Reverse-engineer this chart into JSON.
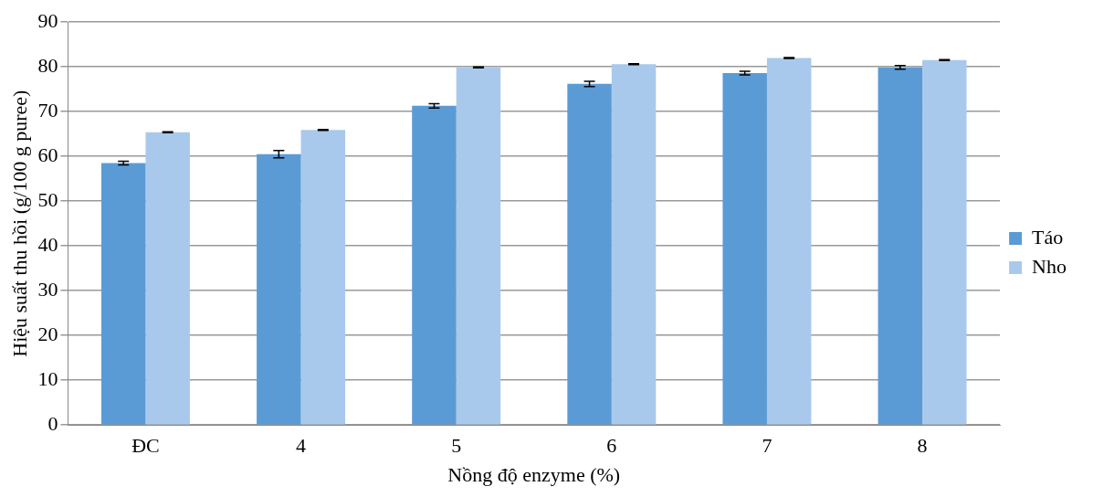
{
  "chart_data": {
    "type": "bar",
    "xlabel": "Nồng độ enzyme (%)",
    "ylabel": "Hiệu suất thu hồi (g/100 g puree)",
    "categories": [
      "ĐC",
      "4",
      "5",
      "6",
      "7",
      "8"
    ],
    "series": [
      {
        "name": "Táo",
        "color": "#5b9bd5",
        "values": [
          58.5,
          60.5,
          71.3,
          76.2,
          78.6,
          79.9
        ],
        "errors": [
          0.4,
          0.8,
          0.5,
          0.6,
          0.4,
          0.4
        ]
      },
      {
        "name": "Nho",
        "color": "#a9c9ec",
        "values": [
          65.4,
          65.9,
          79.9,
          80.6,
          82.0,
          81.5
        ],
        "errors": [
          0.1,
          0.1,
          0.1,
          0.1,
          0.1,
          0.1
        ]
      }
    ],
    "ylim": [
      0,
      90
    ],
    "yticks": [
      0,
      10,
      20,
      30,
      40,
      50,
      60,
      70,
      80,
      90
    ],
    "grid": "y",
    "legend": "right"
  }
}
